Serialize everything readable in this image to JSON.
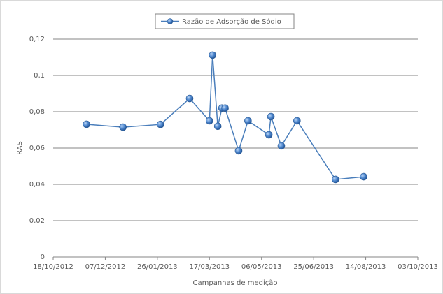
{
  "chart_data": {
    "type": "line",
    "x_label": "Campanhas de medição",
    "y_label": "RAS",
    "x": [
      "2012-11-19",
      "2012-12-24",
      "2013-01-29",
      "2013-02-26",
      "2013-03-17",
      "2013-03-20",
      "2013-03-25",
      "2013-03-29",
      "2013-04-01",
      "2013-04-14",
      "2013-04-23",
      "2013-05-13",
      "2013-05-15",
      "2013-05-25",
      "2013-06-09",
      "2013-07-16",
      "2013-08-12"
    ],
    "series": [
      {
        "name": "Razão de Adsorção de Sódio",
        "color": "#4a7ebb",
        "values": [
          0.0731,
          0.0715,
          0.073,
          0.0873,
          0.075,
          0.1112,
          0.072,
          0.082,
          0.082,
          0.0585,
          0.075,
          0.0673,
          0.0773,
          0.0612,
          0.075,
          0.0427,
          0.0442
        ]
      }
    ],
    "xlim": [
      "2012-10-18",
      "2013-10-03"
    ],
    "xticks": [
      {
        "value": "2012-10-18",
        "label": "18/10/2012"
      },
      {
        "value": "2012-12-07",
        "label": "07/12/2012"
      },
      {
        "value": "2013-01-26",
        "label": "26/01/2013"
      },
      {
        "value": "2013-03-17",
        "label": "17/03/2013"
      },
      {
        "value": "2013-05-06",
        "label": "06/05/2013"
      },
      {
        "value": "2013-06-25",
        "label": "25/06/2013"
      },
      {
        "value": "2013-08-14",
        "label": "14/08/2013"
      },
      {
        "value": "2013-10-03",
        "label": "03/10/2013"
      }
    ],
    "ylim": [
      0,
      0.12
    ],
    "yticks": [
      0,
      {
        "value": 0.02,
        "label": "0,02"
      },
      {
        "value": 0.04,
        "label": "0,04"
      },
      {
        "value": 0.06,
        "label": "0,06"
      },
      {
        "value": 0.08,
        "label": "0,08"
      },
      {
        "value": 0.1,
        "label": "0,1"
      },
      {
        "value": 0.12,
        "label": "0,12"
      }
    ],
    "grid": true,
    "legend": "top"
  }
}
